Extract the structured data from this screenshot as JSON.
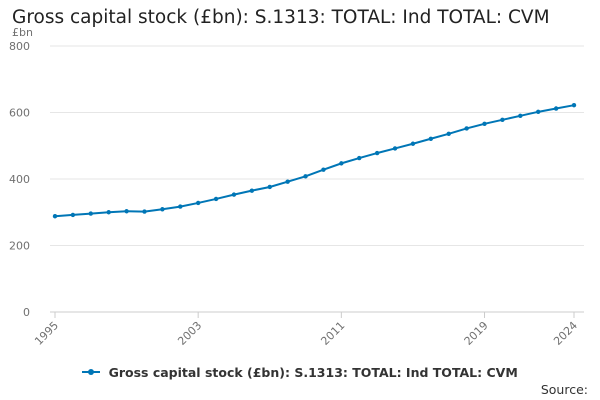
{
  "chart_data": {
    "type": "line",
    "title": "Gross capital stock (£bn): S.1313: TOTAL: Ind TOTAL: CVM",
    "ylabel": "£bn",
    "xlabel": "",
    "ylim": [
      0,
      800
    ],
    "yticks": [
      0,
      200,
      400,
      600,
      800
    ],
    "xlim": [
      1995,
      2024
    ],
    "xticks": [
      1995,
      2003,
      2011,
      2019,
      2024
    ],
    "grid": true,
    "legend_position": "bottom",
    "series": [
      {
        "name": "Gross capital stock (£bn): S.1313: TOTAL: Ind TOTAL: CVM",
        "color": "#0076b6",
        "x": [
          1995,
          1996,
          1997,
          1998,
          1999,
          2000,
          2001,
          2002,
          2003,
          2004,
          2005,
          2006,
          2007,
          2008,
          2009,
          2010,
          2011,
          2012,
          2013,
          2014,
          2015,
          2016,
          2017,
          2018,
          2019,
          2020,
          2021,
          2022,
          2023,
          2024
        ],
        "values": [
          288,
          292,
          296,
          300,
          303,
          302,
          309,
          317,
          328,
          340,
          353,
          365,
          376,
          392,
          408,
          428,
          447,
          463,
          478,
          492,
          506,
          521,
          536,
          552,
          566,
          578,
          590,
          602,
          612,
          622
        ]
      }
    ]
  },
  "footer": {
    "source_label": "Source:"
  }
}
